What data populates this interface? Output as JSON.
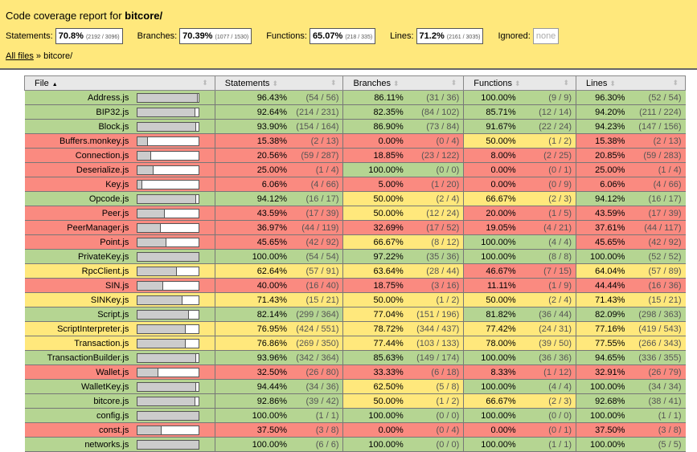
{
  "title_prefix": "Code coverage report for",
  "title_dir": "bitcore/",
  "summary": {
    "statements": {
      "label": "Statements:",
      "pct": "70.8%",
      "frac": "(2192 / 3096)"
    },
    "branches": {
      "label": "Branches:",
      "pct": "70.39%",
      "frac": "(1077 / 1530)"
    },
    "functions": {
      "label": "Functions:",
      "pct": "65.07%",
      "frac": "(218 / 335)"
    },
    "lines": {
      "label": "Lines:",
      "pct": "71.2%",
      "frac": "(2161 / 3035)"
    },
    "ignored": {
      "label": "Ignored:",
      "value": "none"
    }
  },
  "breadcrumb": {
    "root": "All files",
    "sep": "»",
    "current": "bitcore/"
  },
  "columns": {
    "file": "File",
    "statements": "Statements",
    "branches": "Branches",
    "functions": "Functions",
    "lines": "Lines"
  },
  "rows": [
    [
      "Address.js",
      "96.43%",
      "(54 / 56)",
      "86.11%",
      "(31 / 36)",
      "100.00%",
      "(9 / 9)",
      "96.30%",
      "(52 / 54)"
    ],
    [
      "BIP32.js",
      "92.64%",
      "(214 / 231)",
      "82.35%",
      "(84 / 102)",
      "85.71%",
      "(12 / 14)",
      "94.20%",
      "(211 / 224)"
    ],
    [
      "Block.js",
      "93.90%",
      "(154 / 164)",
      "86.90%",
      "(73 / 84)",
      "91.67%",
      "(22 / 24)",
      "94.23%",
      "(147 / 156)"
    ],
    [
      "Buffers.monkey.js",
      "15.38%",
      "(2 / 13)",
      "0.00%",
      "(0 / 4)",
      "50.00%",
      "(1 / 2)",
      "15.38%",
      "(2 / 13)"
    ],
    [
      "Connection.js",
      "20.56%",
      "(59 / 287)",
      "18.85%",
      "(23 / 122)",
      "8.00%",
      "(2 / 25)",
      "20.85%",
      "(59 / 283)"
    ],
    [
      "Deserialize.js",
      "25.00%",
      "(1 / 4)",
      "100.00%",
      "(0 / 0)",
      "0.00%",
      "(0 / 1)",
      "25.00%",
      "(1 / 4)"
    ],
    [
      "Key.js",
      "6.06%",
      "(4 / 66)",
      "5.00%",
      "(1 / 20)",
      "0.00%",
      "(0 / 9)",
      "6.06%",
      "(4 / 66)"
    ],
    [
      "Opcode.js",
      "94.12%",
      "(16 / 17)",
      "50.00%",
      "(2 / 4)",
      "66.67%",
      "(2 / 3)",
      "94.12%",
      "(16 / 17)"
    ],
    [
      "Peer.js",
      "43.59%",
      "(17 / 39)",
      "50.00%",
      "(12 / 24)",
      "20.00%",
      "(1 / 5)",
      "43.59%",
      "(17 / 39)"
    ],
    [
      "PeerManager.js",
      "36.97%",
      "(44 / 119)",
      "32.69%",
      "(17 / 52)",
      "19.05%",
      "(4 / 21)",
      "37.61%",
      "(44 / 117)"
    ],
    [
      "Point.js",
      "45.65%",
      "(42 / 92)",
      "66.67%",
      "(8 / 12)",
      "100.00%",
      "(4 / 4)",
      "45.65%",
      "(42 / 92)"
    ],
    [
      "PrivateKey.js",
      "100.00%",
      "(54 / 54)",
      "97.22%",
      "(35 / 36)",
      "100.00%",
      "(8 / 8)",
      "100.00%",
      "(52 / 52)"
    ],
    [
      "RpcClient.js",
      "62.64%",
      "(57 / 91)",
      "63.64%",
      "(28 / 44)",
      "46.67%",
      "(7 / 15)",
      "64.04%",
      "(57 / 89)"
    ],
    [
      "SIN.js",
      "40.00%",
      "(16 / 40)",
      "18.75%",
      "(3 / 16)",
      "11.11%",
      "(1 / 9)",
      "44.44%",
      "(16 / 36)"
    ],
    [
      "SINKey.js",
      "71.43%",
      "(15 / 21)",
      "50.00%",
      "(1 / 2)",
      "50.00%",
      "(2 / 4)",
      "71.43%",
      "(15 / 21)"
    ],
    [
      "Script.js",
      "82.14%",
      "(299 / 364)",
      "77.04%",
      "(151 / 196)",
      "81.82%",
      "(36 / 44)",
      "82.09%",
      "(298 / 363)"
    ],
    [
      "ScriptInterpreter.js",
      "76.95%",
      "(424 / 551)",
      "78.72%",
      "(344 / 437)",
      "77.42%",
      "(24 / 31)",
      "77.16%",
      "(419 / 543)"
    ],
    [
      "Transaction.js",
      "76.86%",
      "(269 / 350)",
      "77.44%",
      "(103 / 133)",
      "78.00%",
      "(39 / 50)",
      "77.55%",
      "(266 / 343)"
    ],
    [
      "TransactionBuilder.js",
      "93.96%",
      "(342 / 364)",
      "85.63%",
      "(149 / 174)",
      "100.00%",
      "(36 / 36)",
      "94.65%",
      "(336 / 355)"
    ],
    [
      "Wallet.js",
      "32.50%",
      "(26 / 80)",
      "33.33%",
      "(6 / 18)",
      "8.33%",
      "(1 / 12)",
      "32.91%",
      "(26 / 79)"
    ],
    [
      "WalletKey.js",
      "94.44%",
      "(34 / 36)",
      "62.50%",
      "(5 / 8)",
      "100.00%",
      "(4 / 4)",
      "100.00%",
      "(34 / 34)"
    ],
    [
      "bitcore.js",
      "92.86%",
      "(39 / 42)",
      "50.00%",
      "(1 / 2)",
      "66.67%",
      "(2 / 3)",
      "92.68%",
      "(38 / 41)"
    ],
    [
      "config.js",
      "100.00%",
      "(1 / 1)",
      "100.00%",
      "(0 / 0)",
      "100.00%",
      "(0 / 0)",
      "100.00%",
      "(1 / 1)"
    ],
    [
      "const.js",
      "37.50%",
      "(3 / 8)",
      "0.00%",
      "(0 / 4)",
      "0.00%",
      "(0 / 1)",
      "37.50%",
      "(3 / 8)"
    ],
    [
      "networks.js",
      "100.00%",
      "(6 / 6)",
      "100.00%",
      "(0 / 0)",
      "100.00%",
      "(1 / 1)",
      "100.00%",
      "(5 / 5)"
    ]
  ]
}
